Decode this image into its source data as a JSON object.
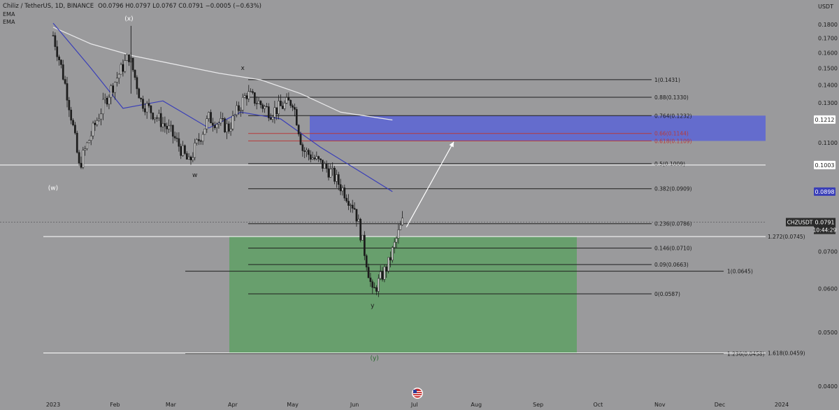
{
  "header": {
    "symbol_line": "Chiliz / TetherUS, 1D, BINANCE",
    "ohlc": "O0.0796  H0.0797  L0.0767  C0.0791  −0.0005 (−0.63%)",
    "indicators": [
      "EMA",
      "EMA"
    ]
  },
  "price_axis": {
    "currency": "USDT",
    "ticks": [
      "0.1800",
      "0.1700",
      "0.1600",
      "0.1500",
      "0.1400",
      "0.1300",
      "0.1100",
      "0.0700",
      "0.0600",
      "0.0500",
      "0.0400"
    ],
    "badges": {
      "ema200": "0.1212",
      "level": "0.1003",
      "ema50": "0.0898",
      "last": "0.0791",
      "countdown": "10:44:29",
      "symbol": "CHZUSDT"
    }
  },
  "time_axis": {
    "labels": [
      "2023",
      "Feb",
      "Mar",
      "Apr",
      "May",
      "Jun",
      "Jul",
      "Aug",
      "Sep",
      "Oct",
      "Nov",
      "Dec",
      "2024"
    ]
  },
  "fib_levels": [
    {
      "label": "1(0.1431)",
      "price": 0.1431
    },
    {
      "label": "0.88(0.1330)",
      "price": 0.133
    },
    {
      "label": "0.764(0.1232)",
      "price": 0.1232
    },
    {
      "label": "0.66(0.1144)",
      "price": 0.1144
    },
    {
      "label": "0.618(0.1109)",
      "price": 0.1109
    },
    {
      "label": "0.5(0.1009)",
      "price": 0.1009
    },
    {
      "label": "0.382(0.0909)",
      "price": 0.0909
    },
    {
      "label": "0.236(0.0786)",
      "price": 0.0786
    },
    {
      "label": "0.146(0.0710)",
      "price": 0.071
    },
    {
      "label": "0.09(0.0663)",
      "price": 0.0663
    },
    {
      "label": "0(0.0587)",
      "price": 0.0587
    }
  ],
  "extension_levels": [
    {
      "label": "1.272(0.0745)",
      "price": 0.0745
    },
    {
      "label": "1(0.0645)",
      "price": 0.0645
    },
    {
      "label": "1.236(0.0458)",
      "price": 0.0458
    },
    {
      "label": "1.618(0.0459)",
      "price": 0.0459
    }
  ],
  "wave_labels": [
    "(x)",
    "x",
    "(w)",
    "w",
    "y",
    "(y)"
  ],
  "chart_data": {
    "type": "candlestick",
    "symbol": "CHZUSDT",
    "timeframe": "1D",
    "ylim": [
      0.04,
      0.185
    ],
    "series": [
      {
        "name": "EMA",
        "points": [
          [
            "2023-01-01",
            0.178
          ],
          [
            "2023-01-20",
            0.166
          ],
          [
            "2023-02-10",
            0.158
          ],
          [
            "2023-03-05",
            0.152
          ],
          [
            "2023-03-25",
            0.147
          ],
          [
            "2023-04-15",
            0.143
          ],
          [
            "2023-05-05",
            0.135
          ],
          [
            "2023-05-25",
            0.125
          ],
          [
            "2023-06-20",
            0.121
          ]
        ]
      },
      {
        "name": "EMA",
        "points": [
          [
            "2023-01-01",
            0.181
          ],
          [
            "2023-01-20",
            0.15
          ],
          [
            "2023-02-05",
            0.127
          ],
          [
            "2023-02-25",
            0.131
          ],
          [
            "2023-03-20",
            0.117
          ],
          [
            "2023-04-05",
            0.125
          ],
          [
            "2023-04-25",
            0.1215
          ],
          [
            "2023-05-15",
            0.108
          ],
          [
            "2023-06-05",
            0.097
          ],
          [
            "2023-06-20",
            0.0898
          ]
        ]
      }
    ],
    "price_path": [
      [
        "2023-01-01",
        0.172
      ],
      [
        "2023-01-08",
        0.135
      ],
      [
        "2023-01-14",
        0.0995
      ],
      [
        "2023-01-28",
        0.133
      ],
      [
        "2023-02-08",
        0.158
      ],
      [
        "2023-02-14",
        0.131
      ],
      [
        "2023-03-01",
        0.115
      ],
      [
        "2023-03-10",
        0.101
      ],
      [
        "2023-03-20",
        0.122
      ],
      [
        "2023-03-30",
        0.117
      ],
      [
        "2023-04-08",
        0.135
      ],
      [
        "2023-04-20",
        0.125
      ],
      [
        "2023-05-01",
        0.131
      ],
      [
        "2023-05-06",
        0.107
      ],
      [
        "2023-05-20",
        0.0975
      ],
      [
        "2023-06-01",
        0.084
      ],
      [
        "2023-06-10",
        0.0587
      ],
      [
        "2023-06-18",
        0.0665
      ],
      [
        "2023-06-25",
        0.0791
      ]
    ],
    "zones": [
      {
        "name": "resistance",
        "from": 0.1109,
        "to": 0.1232
      },
      {
        "name": "support",
        "from": 0.0458,
        "to": 0.0745
      }
    ]
  },
  "footer": {
    "logo": "flag-logo"
  }
}
